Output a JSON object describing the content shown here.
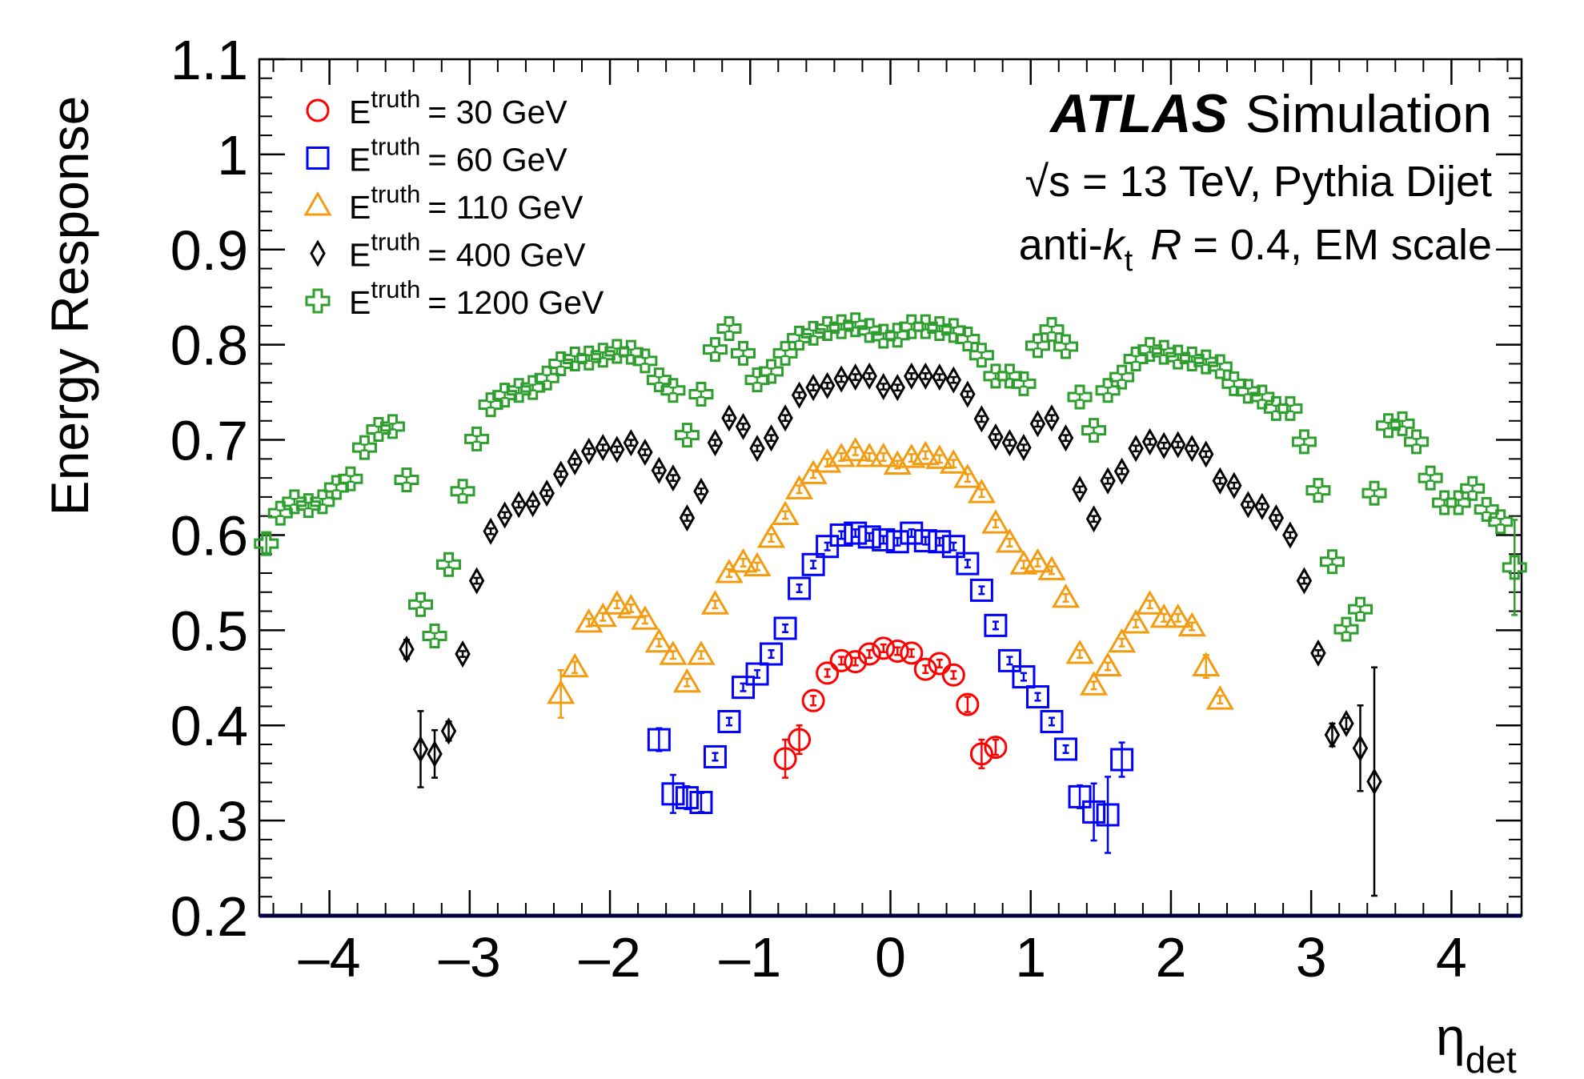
{
  "chart_data": {
    "type": "scatter",
    "ylabel": "Energy Response",
    "xlabel": "η",
    "xlabel_sub": "det",
    "xlim": [
      -4.5,
      4.5
    ],
    "ylim": [
      0.2,
      1.1
    ],
    "xticks": [
      {
        "value": -4,
        "label": "–4"
      },
      {
        "value": -3,
        "label": "–3"
      },
      {
        "value": -2,
        "label": "–2"
      },
      {
        "value": -1,
        "label": "–1"
      },
      0,
      1,
      2,
      3,
      4
    ],
    "yticks": [
      0.2,
      0.3,
      0.4,
      0.5,
      0.6,
      0.7,
      0.8,
      0.9,
      1,
      1.1
    ],
    "grid": false,
    "legend": "top-left",
    "legend_symbol": "E",
    "legend_superscript": "truth",
    "annotations": {
      "experiment": "ATLAS",
      "label": "Simulation",
      "energy": "√s = 13 TeV, Pythia Dijet",
      "algo_prefix": "anti-",
      "algo_k": "k",
      "algo_k_sub": "t",
      "algo_R": "R",
      "algo_suffix": "= 0.4, EM scale"
    },
    "series": [
      {
        "name": "= 30 GeV",
        "marker": "circle",
        "color": "#ff0000",
        "x": [
          -0.75,
          -0.65,
          -0.55,
          -0.45,
          -0.35,
          -0.25,
          -0.15,
          -0.05,
          0.05,
          0.15,
          0.25,
          0.35,
          0.45,
          0.55,
          0.65,
          0.75
        ],
        "values": [
          0.365,
          0.385,
          0.426,
          0.455,
          0.468,
          0.467,
          0.475,
          0.481,
          0.478,
          0.476,
          0.459,
          0.465,
          0.453,
          0.422,
          0.37,
          0.377
        ],
        "errors": [
          0.02,
          0.015,
          0.005,
          0.004,
          0.004,
          0.004,
          0.004,
          0.004,
          0.004,
          0.004,
          0.004,
          0.004,
          0.004,
          0.008,
          0.015,
          0.008
        ]
      },
      {
        "name": "= 60 GeV",
        "marker": "square",
        "color": "#0000ff",
        "x": [
          -1.65,
          -1.55,
          -1.45,
          -1.35,
          -1.25,
          -1.15,
          -1.05,
          -0.95,
          -0.85,
          -0.75,
          -0.65,
          -0.55,
          -0.45,
          -0.35,
          -0.25,
          -0.15,
          -0.05,
          0.05,
          0.15,
          0.25,
          0.35,
          0.45,
          0.55,
          0.65,
          0.75,
          0.85,
          0.95,
          1.05,
          1.15,
          1.25,
          1.35,
          1.45,
          1.55,
          1.65
        ],
        "values": [
          0.385,
          0.328,
          0.324,
          0.319,
          0.367,
          0.404,
          0.44,
          0.454,
          0.475,
          0.502,
          0.544,
          0.569,
          0.588,
          0.6,
          0.602,
          0.598,
          0.595,
          0.593,
          0.602,
          0.594,
          0.593,
          0.588,
          0.57,
          0.542,
          0.505,
          0.468,
          0.451,
          0.43,
          0.404,
          0.375,
          0.325,
          0.309,
          0.306,
          0.364
        ],
        "errors": [
          0.012,
          0.02,
          0.012,
          0.01,
          0.004,
          0.004,
          0.004,
          0.004,
          0.004,
          0.004,
          0.004,
          0.004,
          0.004,
          0.004,
          0.004,
          0.004,
          0.004,
          0.004,
          0.004,
          0.004,
          0.004,
          0.004,
          0.004,
          0.004,
          0.004,
          0.004,
          0.004,
          0.004,
          0.004,
          0.004,
          0.012,
          0.03,
          0.04,
          0.018
        ]
      },
      {
        "name": "= 110 GeV",
        "marker": "triangle",
        "color": "#f39c12",
        "x": [
          -2.35,
          -2.25,
          -2.15,
          -2.05,
          -1.95,
          -1.85,
          -1.75,
          -1.65,
          -1.55,
          -1.45,
          -1.35,
          -1.25,
          -1.15,
          -1.05,
          -0.95,
          -0.85,
          -0.75,
          -0.65,
          -0.55,
          -0.45,
          -0.35,
          -0.25,
          -0.15,
          -0.05,
          0.05,
          0.15,
          0.25,
          0.35,
          0.45,
          0.55,
          0.65,
          0.75,
          0.85,
          0.95,
          1.05,
          1.15,
          1.25,
          1.35,
          1.45,
          1.55,
          1.65,
          1.75,
          1.85,
          1.95,
          2.05,
          2.15,
          2.25,
          2.35
        ],
        "values": [
          0.433,
          0.461,
          0.508,
          0.514,
          0.527,
          0.523,
          0.511,
          0.487,
          0.474,
          0.445,
          0.474,
          0.527,
          0.56,
          0.571,
          0.567,
          0.597,
          0.621,
          0.648,
          0.664,
          0.676,
          0.682,
          0.688,
          0.682,
          0.682,
          0.674,
          0.681,
          0.684,
          0.68,
          0.675,
          0.66,
          0.644,
          0.612,
          0.592,
          0.569,
          0.571,
          0.563,
          0.534,
          0.475,
          0.442,
          0.462,
          0.487,
          0.507,
          0.527,
          0.513,
          0.513,
          0.504,
          0.462,
          0.427
        ],
        "errors": [
          0.025,
          0.006,
          0.004,
          0.004,
          0.004,
          0.004,
          0.004,
          0.004,
          0.004,
          0.004,
          0.004,
          0.004,
          0.004,
          0.004,
          0.004,
          0.004,
          0.004,
          0.004,
          0.004,
          0.004,
          0.004,
          0.004,
          0.004,
          0.004,
          0.004,
          0.004,
          0.004,
          0.004,
          0.004,
          0.004,
          0.004,
          0.004,
          0.004,
          0.004,
          0.004,
          0.004,
          0.004,
          0.004,
          0.004,
          0.004,
          0.004,
          0.004,
          0.004,
          0.004,
          0.004,
          0.004,
          0.012,
          0.004
        ]
      },
      {
        "name": "= 400 GeV",
        "marker": "diamond",
        "color": "#000000",
        "x": [
          -3.45,
          -3.35,
          -3.25,
          -3.15,
          -3.05,
          -2.95,
          -2.85,
          -2.75,
          -2.65,
          -2.55,
          -2.45,
          -2.35,
          -2.25,
          -2.15,
          -2.05,
          -1.95,
          -1.85,
          -1.75,
          -1.65,
          -1.55,
          -1.45,
          -1.35,
          -1.25,
          -1.15,
          -1.05,
          -0.95,
          -0.85,
          -0.75,
          -0.65,
          -0.55,
          -0.45,
          -0.35,
          -0.25,
          -0.15,
          -0.05,
          0.05,
          0.15,
          0.25,
          0.35,
          0.45,
          0.55,
          0.65,
          0.75,
          0.85,
          0.95,
          1.05,
          1.15,
          1.25,
          1.35,
          1.45,
          1.55,
          1.65,
          1.75,
          1.85,
          1.95,
          2.05,
          2.15,
          2.25,
          2.35,
          2.45,
          2.55,
          2.65,
          2.75,
          2.85,
          2.95,
          3.05,
          3.15,
          3.25,
          3.35,
          3.45
        ],
        "values": [
          0.48,
          0.375,
          0.37,
          0.394,
          0.475,
          0.552,
          0.604,
          0.621,
          0.632,
          0.633,
          0.644,
          0.664,
          0.677,
          0.688,
          0.692,
          0.69,
          0.697,
          0.687,
          0.668,
          0.66,
          0.618,
          0.646,
          0.697,
          0.723,
          0.714,
          0.691,
          0.702,
          0.723,
          0.747,
          0.755,
          0.757,
          0.764,
          0.766,
          0.767,
          0.756,
          0.755,
          0.767,
          0.767,
          0.766,
          0.763,
          0.748,
          0.722,
          0.703,
          0.697,
          0.692,
          0.717,
          0.723,
          0.702,
          0.648,
          0.617,
          0.657,
          0.667,
          0.691,
          0.698,
          0.694,
          0.695,
          0.691,
          0.685,
          0.657,
          0.652,
          0.632,
          0.63,
          0.618,
          0.6,
          0.552,
          0.476,
          0.39,
          0.402,
          0.376,
          0.341
        ],
        "errors": [
          0.01,
          0.04,
          0.025,
          0.01,
          0.003,
          0.003,
          0.003,
          0.003,
          0.003,
          0.003,
          0.003,
          0.003,
          0.003,
          0.003,
          0.003,
          0.003,
          0.003,
          0.003,
          0.003,
          0.003,
          0.003,
          0.003,
          0.003,
          0.003,
          0.003,
          0.003,
          0.003,
          0.003,
          0.003,
          0.003,
          0.003,
          0.003,
          0.003,
          0.003,
          0.003,
          0.003,
          0.003,
          0.003,
          0.003,
          0.003,
          0.003,
          0.003,
          0.003,
          0.003,
          0.003,
          0.003,
          0.003,
          0.003,
          0.003,
          0.003,
          0.003,
          0.003,
          0.003,
          0.003,
          0.003,
          0.003,
          0.003,
          0.003,
          0.003,
          0.003,
          0.003,
          0.003,
          0.003,
          0.003,
          0.003,
          0.003,
          0.012,
          0.006,
          0.045,
          0.12
        ]
      },
      {
        "name": "= 1200 GeV",
        "marker": "cross",
        "color": "#2e9e2e",
        "x": [
          -4.45,
          -4.35,
          -4.25,
          -4.15,
          -4.05,
          -3.95,
          -3.85,
          -3.75,
          -3.65,
          -3.55,
          -3.45,
          -3.35,
          -3.25,
          -3.15,
          -3.05,
          -2.95,
          -2.85,
          -2.75,
          -2.65,
          -2.55,
          -2.45,
          -2.35,
          -2.25,
          -2.15,
          -2.05,
          -1.95,
          -1.85,
          -1.75,
          -1.65,
          -1.55,
          -1.45,
          -1.35,
          -1.25,
          -1.15,
          -1.05,
          -0.95,
          -0.85,
          -0.75,
          -0.65,
          -0.55,
          -0.45,
          -0.35,
          -0.25,
          -0.15,
          -0.05,
          0.05,
          0.15,
          0.25,
          0.35,
          0.45,
          0.55,
          0.65,
          0.75,
          0.85,
          0.95,
          1.05,
          1.15,
          1.25,
          1.35,
          1.45,
          1.55,
          1.65,
          1.75,
          1.85,
          1.95,
          2.05,
          2.15,
          2.25,
          2.35,
          2.45,
          2.55,
          2.65,
          2.75,
          2.85,
          2.95,
          3.05,
          3.15,
          3.25,
          3.35,
          3.45,
          3.55,
          3.65,
          3.75,
          3.85,
          3.95,
          4.05,
          4.15,
          4.25,
          4.35,
          4.45
        ],
        "values": [
          0.591,
          0.623,
          0.635,
          0.631,
          0.635,
          0.65,
          0.659,
          0.692,
          0.711,
          0.714,
          0.658,
          0.527,
          0.494,
          0.569,
          0.646,
          0.701,
          0.737,
          0.747,
          0.752,
          0.755,
          0.765,
          0.78,
          0.785,
          0.786,
          0.789,
          0.793,
          0.792,
          0.783,
          0.763,
          0.752,
          0.705,
          0.748,
          0.795,
          0.817,
          0.791,
          0.763,
          0.772,
          0.791,
          0.807,
          0.812,
          0.817,
          0.819,
          0.821,
          0.815,
          0.809,
          0.81,
          0.819,
          0.819,
          0.817,
          0.815,
          0.806,
          0.789,
          0.767,
          0.767,
          0.759,
          0.799,
          0.816,
          0.798,
          0.745,
          0.71,
          0.752,
          0.766,
          0.785,
          0.795,
          0.792,
          0.787,
          0.785,
          0.782,
          0.777,
          0.759,
          0.751,
          0.745,
          0.733,
          0.733,
          0.698,
          0.647,
          0.572,
          0.501,
          0.522,
          0.644,
          0.715,
          0.717,
          0.698,
          0.66,
          0.634,
          0.634,
          0.649,
          0.627,
          0.614,
          0.566
        ],
        "errors": [
          0.01,
          0.003,
          0.003,
          0.003,
          0.003,
          0.003,
          0.003,
          0.003,
          0.003,
          0.003,
          0.003,
          0.003,
          0.003,
          0.003,
          0.003,
          0.003,
          0.003,
          0.003,
          0.003,
          0.003,
          0.003,
          0.003,
          0.003,
          0.003,
          0.003,
          0.003,
          0.003,
          0.003,
          0.003,
          0.003,
          0.003,
          0.003,
          0.003,
          0.003,
          0.003,
          0.003,
          0.003,
          0.003,
          0.003,
          0.003,
          0.003,
          0.003,
          0.003,
          0.003,
          0.003,
          0.003,
          0.003,
          0.003,
          0.003,
          0.003,
          0.003,
          0.003,
          0.003,
          0.003,
          0.003,
          0.003,
          0.003,
          0.003,
          0.003,
          0.003,
          0.003,
          0.003,
          0.003,
          0.003,
          0.003,
          0.003,
          0.003,
          0.003,
          0.003,
          0.003,
          0.003,
          0.003,
          0.003,
          0.003,
          0.003,
          0.003,
          0.003,
          0.003,
          0.003,
          0.003,
          0.003,
          0.003,
          0.003,
          0.003,
          0.003,
          0.003,
          0.003,
          0.003,
          0.003,
          0.05
        ]
      }
    ]
  }
}
